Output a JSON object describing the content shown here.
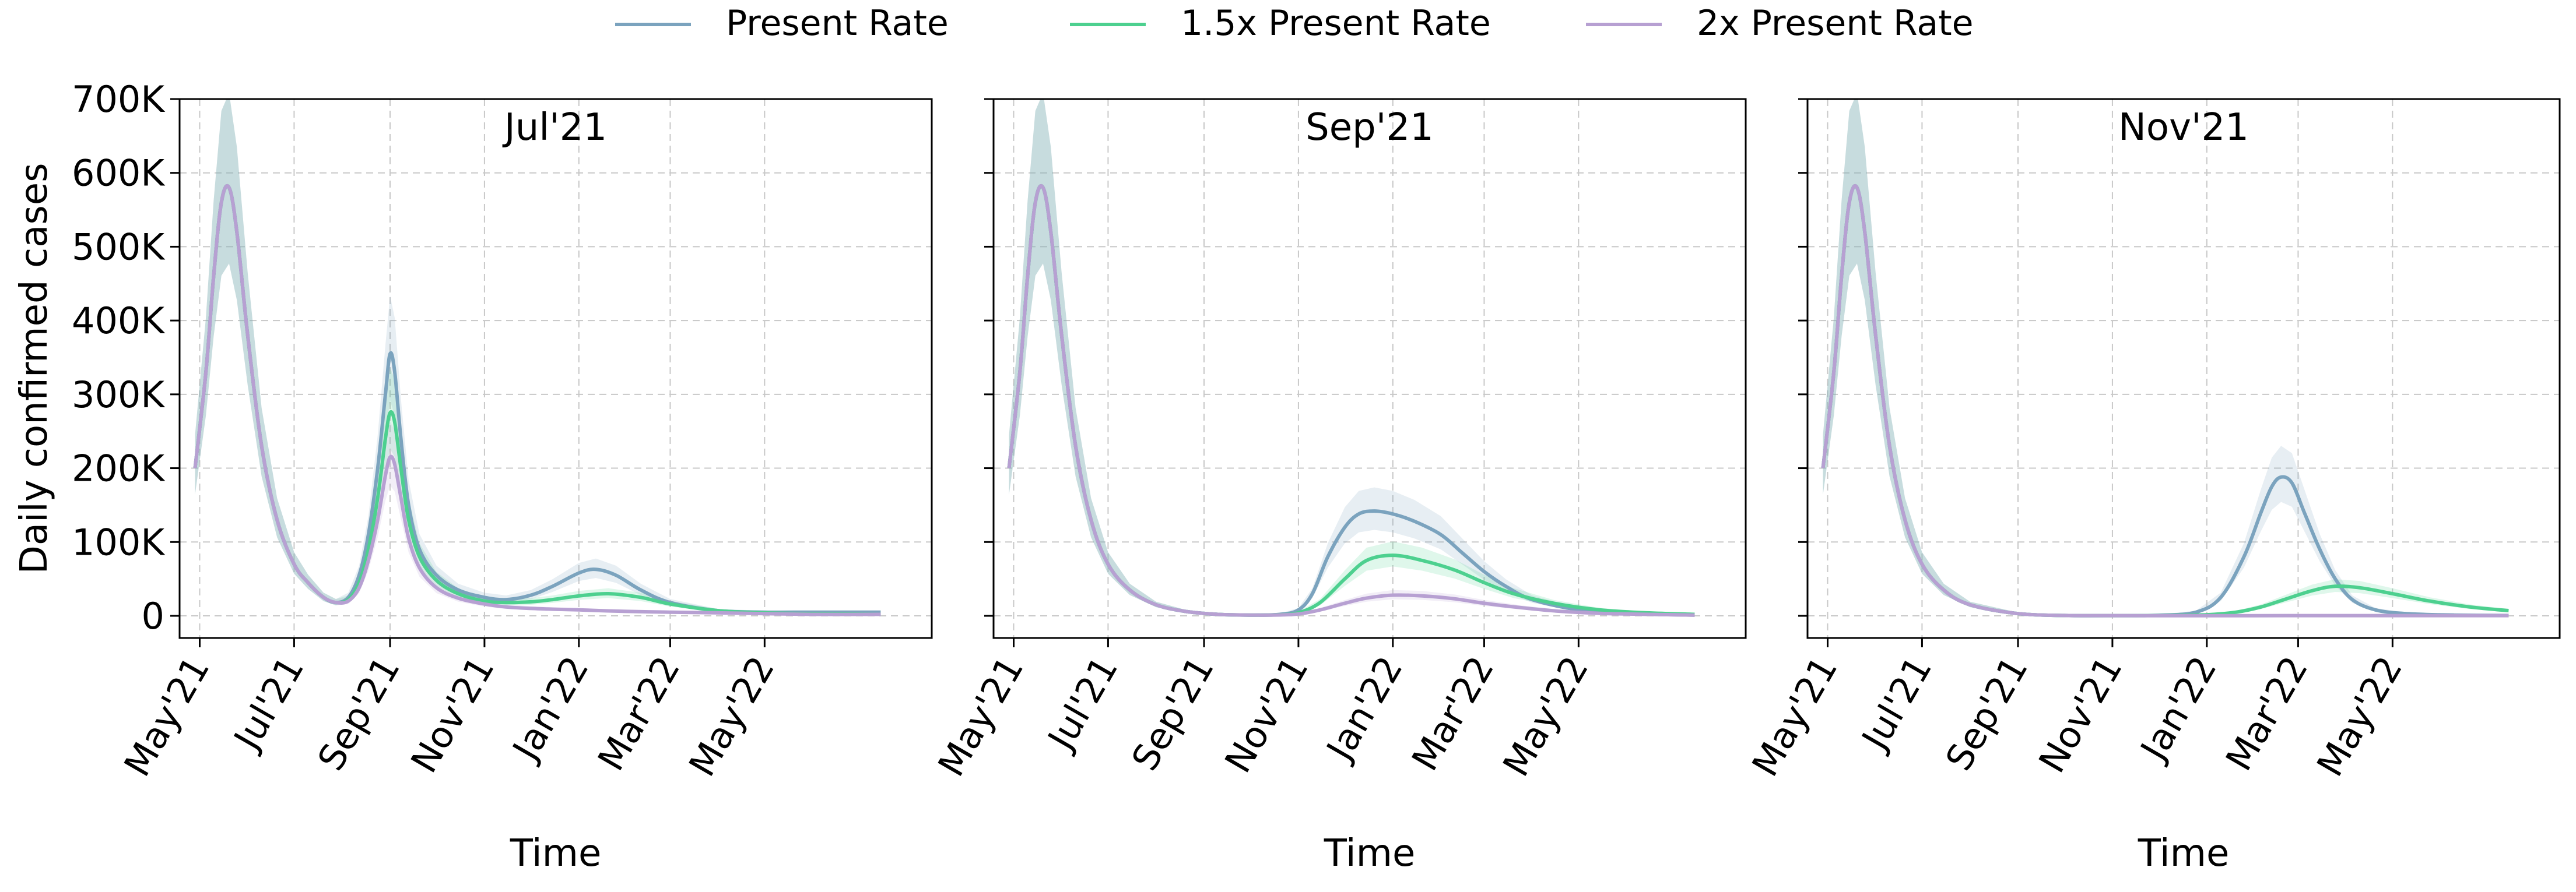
{
  "chart_data": [
    {
      "type": "line",
      "title": "Jul'21",
      "xlabel": "Time",
      "ylabel": "Daily confirmed cases",
      "ylim": [
        -30000,
        700000
      ],
      "xlim": [
        "2021-04-18",
        "2022-08-17"
      ],
      "xticks": [
        "May'21",
        "Jul'21",
        "Sep'21",
        "Nov'21",
        "Jan'22",
        "Mar'22",
        "May'22"
      ],
      "yticks": [
        "0",
        "100K",
        "200K",
        "300K",
        "400K",
        "500K",
        "600K",
        "700K"
      ],
      "grid": true,
      "series": [
        {
          "name": "Present Rate",
          "color": "#7ba3be",
          "x": [
            "2021-04-28",
            "2021-05-05",
            "2021-05-10",
            "2021-05-15",
            "2021-05-20",
            "2021-05-25",
            "2021-06-01",
            "2021-06-10",
            "2021-06-20",
            "2021-07-01",
            "2021-07-10",
            "2021-07-20",
            "2021-07-28",
            "2021-08-05",
            "2021-08-12",
            "2021-08-18",
            "2021-08-24",
            "2021-08-29",
            "2021-09-01",
            "2021-09-04",
            "2021-09-08",
            "2021-09-13",
            "2021-09-20",
            "2021-10-01",
            "2021-10-15",
            "2021-11-01",
            "2021-11-15",
            "2021-12-01",
            "2021-12-15",
            "2022-01-01",
            "2022-01-12",
            "2022-01-25",
            "2022-02-10",
            "2022-03-01",
            "2022-04-01",
            "2022-05-01",
            "2022-06-01",
            "2022-07-15"
          ],
          "y": [
            200000,
            330000,
            460000,
            560000,
            580000,
            520000,
            380000,
            230000,
            130000,
            70000,
            45000,
            25000,
            18000,
            25000,
            55000,
            110000,
            200000,
            300000,
            355000,
            330000,
            240000,
            150000,
            90000,
            55000,
            35000,
            25000,
            22000,
            28000,
            40000,
            58000,
            63000,
            55000,
            35000,
            18000,
            7000,
            5000,
            5000,
            5000
          ]
        },
        {
          "name": "1.5x Present Rate",
          "color": "#4dd08f",
          "x": [
            "2021-04-28",
            "2021-05-05",
            "2021-05-10",
            "2021-05-15",
            "2021-05-20",
            "2021-05-25",
            "2021-06-01",
            "2021-06-10",
            "2021-06-20",
            "2021-07-01",
            "2021-07-10",
            "2021-07-20",
            "2021-07-28",
            "2021-08-05",
            "2021-08-12",
            "2021-08-18",
            "2021-08-24",
            "2021-08-29",
            "2021-09-01",
            "2021-09-04",
            "2021-09-08",
            "2021-09-13",
            "2021-09-20",
            "2021-10-01",
            "2021-10-15",
            "2021-11-01",
            "2021-11-15",
            "2021-12-01",
            "2021-12-15",
            "2022-01-01",
            "2022-01-20",
            "2022-02-10",
            "2022-03-01",
            "2022-04-01",
            "2022-05-01",
            "2022-06-01",
            "2022-07-15"
          ],
          "y": [
            200000,
            330000,
            460000,
            560000,
            580000,
            520000,
            380000,
            230000,
            130000,
            70000,
            45000,
            25000,
            18000,
            22000,
            45000,
            90000,
            160000,
            240000,
            275000,
            262000,
            200000,
            130000,
            80000,
            48000,
            30000,
            20000,
            18000,
            19000,
            22000,
            27000,
            30000,
            25000,
            16000,
            7000,
            4000,
            3000,
            2000
          ]
        },
        {
          "name": "2x Present Rate",
          "color": "#b7a0d2",
          "x": [
            "2021-04-28",
            "2021-05-05",
            "2021-05-10",
            "2021-05-15",
            "2021-05-20",
            "2021-05-25",
            "2021-06-01",
            "2021-06-10",
            "2021-06-20",
            "2021-07-01",
            "2021-07-10",
            "2021-07-20",
            "2021-07-28",
            "2021-08-05",
            "2021-08-12",
            "2021-08-18",
            "2021-08-24",
            "2021-08-29",
            "2021-09-01",
            "2021-09-04",
            "2021-09-08",
            "2021-09-13",
            "2021-09-20",
            "2021-10-01",
            "2021-10-15",
            "2021-11-01",
            "2021-11-15",
            "2021-12-01",
            "2021-12-15",
            "2022-01-01",
            "2022-02-01",
            "2022-03-01",
            "2022-04-01",
            "2022-05-01",
            "2022-06-01",
            "2022-07-15"
          ],
          "y": [
            200000,
            330000,
            460000,
            560000,
            580000,
            520000,
            380000,
            230000,
            130000,
            70000,
            45000,
            25000,
            18000,
            20000,
            38000,
            75000,
            130000,
            190000,
            215000,
            205000,
            160000,
            105000,
            65000,
            38000,
            24000,
            16000,
            12000,
            10000,
            9000,
            8000,
            6000,
            5000,
            4000,
            3000,
            2000,
            2000
          ]
        }
      ]
    },
    {
      "type": "line",
      "title": "Sep'21",
      "xlabel": "Time",
      "ylim": [
        -30000,
        700000
      ],
      "xlim": [
        "2021-04-18",
        "2022-08-17"
      ],
      "xticks": [
        "May'21",
        "Jul'21",
        "Sep'21",
        "Nov'21",
        "Jan'22",
        "Mar'22",
        "May'22"
      ],
      "grid": true,
      "series": [
        {
          "name": "Present Rate",
          "color": "#7ba3be",
          "x": [
            "2021-04-28",
            "2021-05-05",
            "2021-05-10",
            "2021-05-15",
            "2021-05-20",
            "2021-05-25",
            "2021-06-01",
            "2021-06-10",
            "2021-06-20",
            "2021-07-01",
            "2021-07-15",
            "2021-08-01",
            "2021-08-20",
            "2021-09-10",
            "2021-10-01",
            "2021-10-20",
            "2021-11-01",
            "2021-11-10",
            "2021-11-20",
            "2021-12-01",
            "2021-12-10",
            "2021-12-20",
            "2022-01-01",
            "2022-01-15",
            "2022-02-01",
            "2022-02-15",
            "2022-03-01",
            "2022-03-15",
            "2022-04-01",
            "2022-05-01",
            "2022-06-01",
            "2022-07-15"
          ],
          "y": [
            200000,
            330000,
            460000,
            560000,
            580000,
            520000,
            380000,
            230000,
            130000,
            70000,
            35000,
            15000,
            6000,
            2000,
            1000,
            2000,
            8000,
            30000,
            80000,
            120000,
            138000,
            142000,
            138000,
            128000,
            110000,
            85000,
            60000,
            40000,
            22000,
            8000,
            3000,
            1000
          ]
        },
        {
          "name": "1.5x Present Rate",
          "color": "#4dd08f",
          "x": [
            "2021-04-28",
            "2021-05-05",
            "2021-05-10",
            "2021-05-15",
            "2021-05-20",
            "2021-05-25",
            "2021-06-01",
            "2021-06-10",
            "2021-06-20",
            "2021-07-01",
            "2021-07-15",
            "2021-08-01",
            "2021-08-20",
            "2021-09-10",
            "2021-10-01",
            "2021-10-20",
            "2021-11-01",
            "2021-11-15",
            "2021-12-01",
            "2021-12-15",
            "2022-01-01",
            "2022-01-20",
            "2022-02-10",
            "2022-03-01",
            "2022-03-20",
            "2022-04-15",
            "2022-05-15",
            "2022-06-15",
            "2022-07-15"
          ],
          "y": [
            200000,
            330000,
            460000,
            560000,
            580000,
            520000,
            380000,
            230000,
            130000,
            70000,
            35000,
            15000,
            6000,
            2000,
            1000,
            1500,
            4000,
            18000,
            50000,
            75000,
            82000,
            75000,
            62000,
            45000,
            30000,
            17000,
            8000,
            4000,
            2000
          ]
        },
        {
          "name": "2x Present Rate",
          "color": "#b7a0d2",
          "x": [
            "2021-04-28",
            "2021-05-05",
            "2021-05-10",
            "2021-05-15",
            "2021-05-20",
            "2021-05-25",
            "2021-06-01",
            "2021-06-10",
            "2021-06-20",
            "2021-07-01",
            "2021-07-15",
            "2021-08-01",
            "2021-08-20",
            "2021-09-10",
            "2021-10-01",
            "2021-10-20",
            "2021-11-01",
            "2021-11-15",
            "2021-12-01",
            "2021-12-15",
            "2022-01-01",
            "2022-01-20",
            "2022-02-10",
            "2022-03-01",
            "2022-03-25",
            "2022-04-20",
            "2022-05-20",
            "2022-07-15"
          ],
          "y": [
            200000,
            330000,
            460000,
            560000,
            580000,
            520000,
            380000,
            230000,
            130000,
            70000,
            35000,
            15000,
            6000,
            2000,
            1000,
            1200,
            2500,
            8000,
            17000,
            24000,
            28000,
            27000,
            23000,
            17000,
            11000,
            6000,
            3000,
            1000
          ]
        }
      ]
    },
    {
      "type": "line",
      "title": "Nov'21",
      "xlabel": "Time",
      "ylim": [
        -30000,
        700000
      ],
      "xlim": [
        "2021-04-18",
        "2022-08-17"
      ],
      "xticks": [
        "May'21",
        "Jul'21",
        "Sep'21",
        "Nov'21",
        "Jan'22",
        "Mar'22",
        "May'22"
      ],
      "grid": true,
      "series": [
        {
          "name": "Present Rate",
          "color": "#7ba3be",
          "x": [
            "2021-04-28",
            "2021-05-05",
            "2021-05-10",
            "2021-05-15",
            "2021-05-20",
            "2021-05-25",
            "2021-06-01",
            "2021-06-10",
            "2021-06-20",
            "2021-07-01",
            "2021-07-15",
            "2021-08-01",
            "2021-09-01",
            "2021-10-01",
            "2021-11-01",
            "2021-12-01",
            "2021-12-25",
            "2022-01-10",
            "2022-01-25",
            "2022-02-05",
            "2022-02-12",
            "2022-02-18",
            "2022-02-25",
            "2022-03-05",
            "2022-03-15",
            "2022-03-25",
            "2022-04-05",
            "2022-04-20",
            "2022-05-10",
            "2022-06-10",
            "2022-07-15"
          ],
          "y": [
            200000,
            330000,
            460000,
            560000,
            580000,
            520000,
            380000,
            230000,
            130000,
            70000,
            35000,
            15000,
            3000,
            500,
            300,
            800,
            5000,
            25000,
            80000,
            140000,
            175000,
            188000,
            180000,
            140000,
            90000,
            50000,
            22000,
            8000,
            3000,
            1000,
            500
          ]
        },
        {
          "name": "1.5x Present Rate",
          "color": "#4dd08f",
          "x": [
            "2021-04-28",
            "2021-05-05",
            "2021-05-10",
            "2021-05-15",
            "2021-05-20",
            "2021-05-25",
            "2021-06-01",
            "2021-06-10",
            "2021-06-20",
            "2021-07-01",
            "2021-07-15",
            "2021-08-01",
            "2021-09-01",
            "2021-10-01",
            "2021-11-01",
            "2021-12-01",
            "2022-01-01",
            "2022-01-20",
            "2022-02-05",
            "2022-02-20",
            "2022-03-10",
            "2022-03-25",
            "2022-04-10",
            "2022-05-01",
            "2022-05-25",
            "2022-06-20",
            "2022-07-15"
          ],
          "y": [
            200000,
            330000,
            460000,
            560000,
            580000,
            520000,
            380000,
            230000,
            130000,
            70000,
            35000,
            15000,
            3000,
            500,
            300,
            400,
            1500,
            5000,
            12000,
            22000,
            34000,
            40000,
            38000,
            30000,
            20000,
            12000,
            7000
          ]
        },
        {
          "name": "2x Present Rate",
          "color": "#b7a0d2",
          "x": [
            "2021-04-28",
            "2021-05-05",
            "2021-05-10",
            "2021-05-15",
            "2021-05-20",
            "2021-05-25",
            "2021-06-01",
            "2021-06-10",
            "2021-06-20",
            "2021-07-01",
            "2021-07-15",
            "2021-08-01",
            "2021-09-01",
            "2021-10-01",
            "2021-11-01",
            "2021-12-01",
            "2022-02-01",
            "2022-04-01",
            "2022-07-15"
          ],
          "y": [
            200000,
            330000,
            460000,
            560000,
            580000,
            520000,
            380000,
            230000,
            130000,
            70000,
            35000,
            15000,
            3000,
            500,
            300,
            200,
            200,
            300,
            300
          ]
        }
      ]
    }
  ]
}
